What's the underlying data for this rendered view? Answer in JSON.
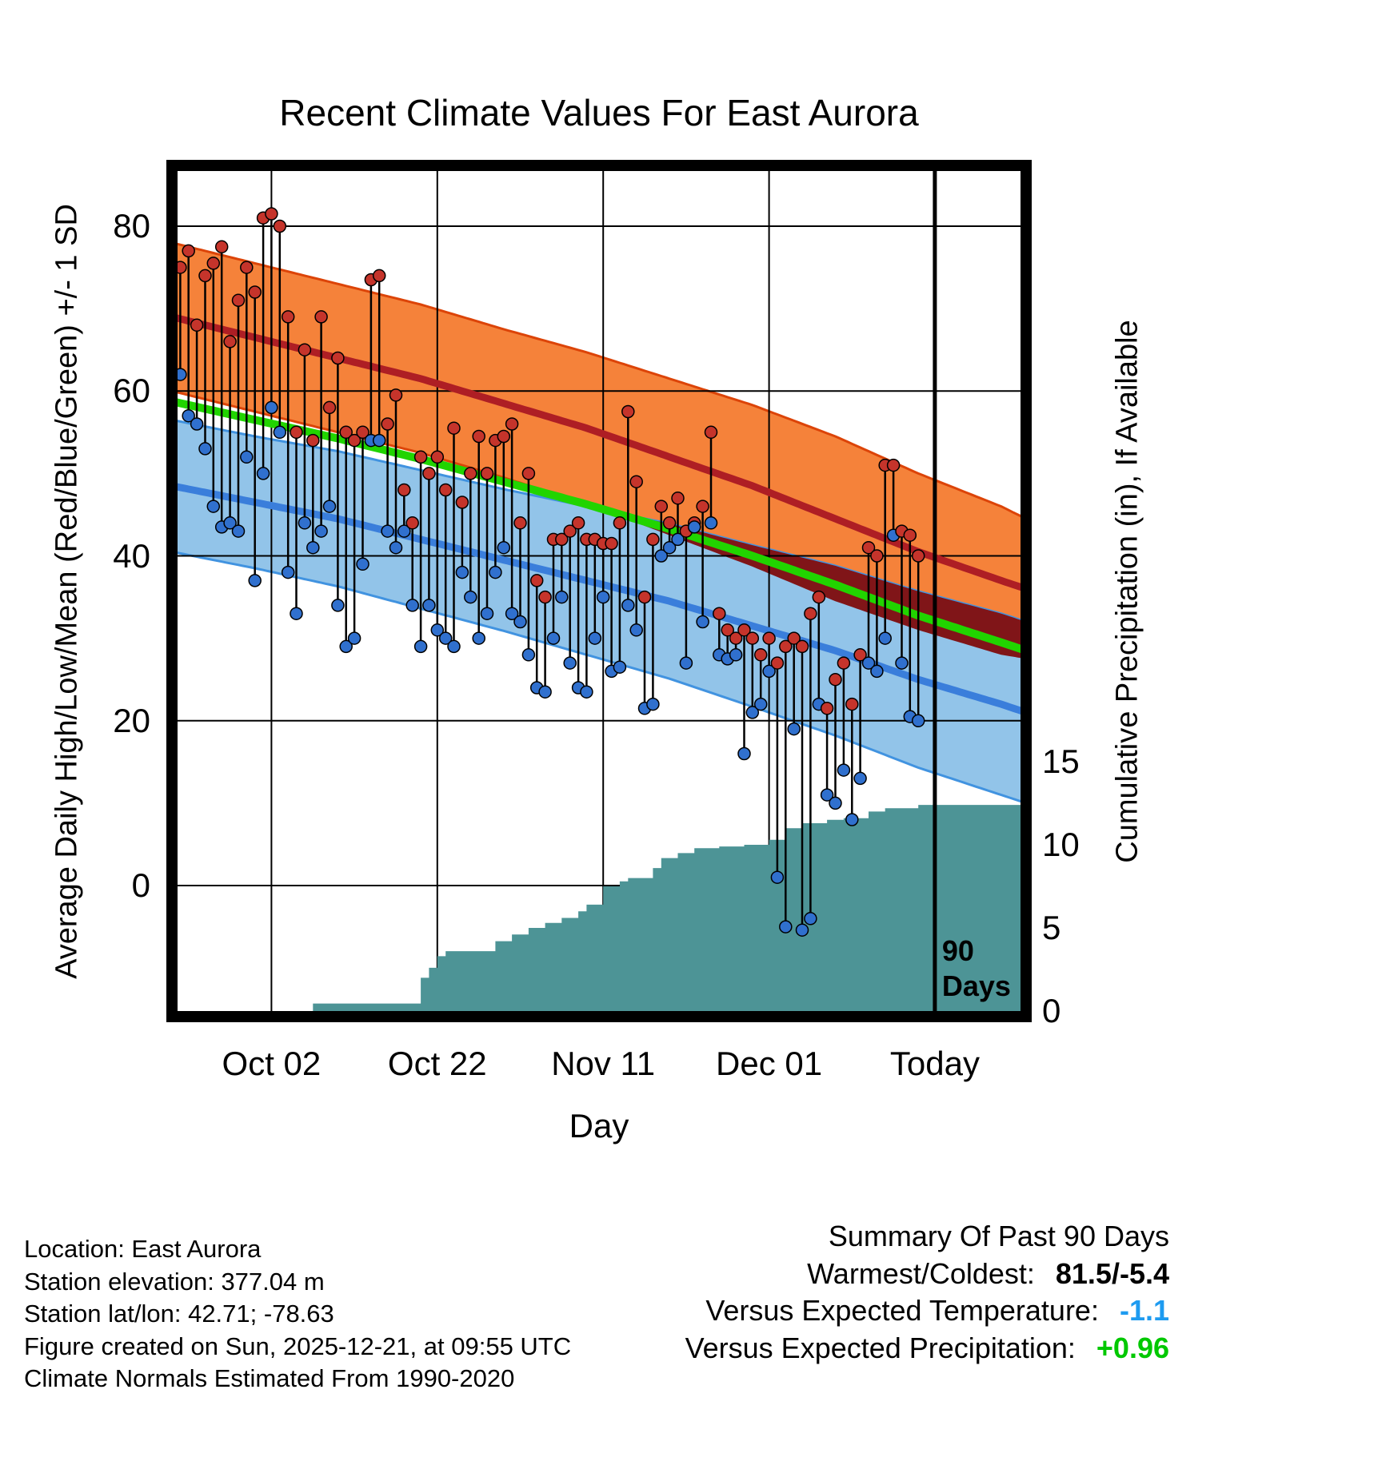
{
  "chart_data": {
    "type": "composite",
    "title": "Recent Climate Values For East Aurora",
    "xlabel": "Day",
    "ylabel_left": "Average Daily High/Low/Mean (Red/Blue/Green) +/- 1 SD",
    "ylabel_right": "Cumulative Precipitation (in), If Available",
    "x_axis_days": [
      0,
      103
    ],
    "temp_axis_range": [
      -15.9,
      87.4
    ],
    "precip_axis_range": [
      0,
      15.6
    ],
    "grid": true,
    "x_ticks": [
      {
        "day": 12,
        "label": "Oct 02"
      },
      {
        "day": 32,
        "label": "Oct 22"
      },
      {
        "day": 52,
        "label": "Nov 11"
      },
      {
        "day": 72,
        "label": "Dec 01"
      },
      {
        "day": 92,
        "label": "Today"
      }
    ],
    "y_ticks_left": [
      {
        "value": 80,
        "label": "80"
      },
      {
        "value": 60,
        "label": "60"
      },
      {
        "value": 40,
        "label": "40"
      },
      {
        "value": 20,
        "label": "20"
      },
      {
        "value": 0,
        "label": "0"
      }
    ],
    "y_ticks_right": [
      {
        "value": 15,
        "label": "15"
      },
      {
        "value": 10,
        "label": "10"
      },
      {
        "value": 5,
        "label": "5"
      },
      {
        "value": 0,
        "label": "0"
      }
    ],
    "today_day": 92,
    "today_label_lines": [
      "90",
      "Days"
    ],
    "normals": {
      "days": [
        0,
        10,
        20,
        30,
        40,
        50,
        60,
        70,
        80,
        90,
        100,
        103
      ],
      "high_mean": [
        69,
        66.5,
        64,
        61.5,
        58.5,
        55.5,
        52,
        48.5,
        44.5,
        40.5,
        37,
        36
      ],
      "high_sd": [
        9,
        9,
        9,
        9,
        9,
        9.2,
        9.5,
        9.8,
        10,
        9.5,
        9,
        8.5
      ],
      "low_mean": [
        48.5,
        46.5,
        44.5,
        42,
        39.5,
        37,
        34.5,
        31.5,
        28.5,
        25,
        22,
        21
      ],
      "low_sd": [
        8,
        8,
        8.2,
        8.4,
        8.6,
        9,
        9.4,
        9.8,
        10.3,
        10.7,
        11,
        11
      ]
    },
    "observations": [
      [
        1,
        75,
        62
      ],
      [
        2,
        77,
        57
      ],
      [
        3,
        68,
        56
      ],
      [
        4,
        74,
        53
      ],
      [
        5,
        75.5,
        46
      ],
      [
        6,
        77.5,
        43.5
      ],
      [
        7,
        66,
        44
      ],
      [
        8,
        71,
        43
      ],
      [
        9,
        75,
        52
      ],
      [
        10,
        72,
        37
      ],
      [
        11,
        81,
        50
      ],
      [
        12,
        81.5,
        58
      ],
      [
        13,
        80,
        55
      ],
      [
        14,
        69,
        38
      ],
      [
        15,
        55,
        33
      ],
      [
        16,
        65,
        44
      ],
      [
        17,
        54,
        41
      ],
      [
        18,
        69,
        43
      ],
      [
        19,
        58,
        46
      ],
      [
        20,
        64,
        34
      ],
      [
        21,
        55,
        29
      ],
      [
        22,
        54,
        30
      ],
      [
        23,
        55,
        39
      ],
      [
        24,
        73.5,
        54
      ],
      [
        25,
        74,
        54
      ],
      [
        26,
        56,
        43
      ],
      [
        27,
        59.5,
        41
      ],
      [
        28,
        48,
        43
      ],
      [
        29,
        44,
        34
      ],
      [
        30,
        52,
        29
      ],
      [
        31,
        50,
        34
      ],
      [
        32,
        52,
        31
      ],
      [
        33,
        48,
        30
      ],
      [
        34,
        55.5,
        29
      ],
      [
        35,
        46.5,
        38
      ],
      [
        36,
        50,
        35
      ],
      [
        37,
        54.5,
        30
      ],
      [
        38,
        50,
        33
      ],
      [
        39,
        54,
        38
      ],
      [
        40,
        54.5,
        41
      ],
      [
        41,
        56,
        33
      ],
      [
        42,
        44,
        32
      ],
      [
        43,
        50,
        28
      ],
      [
        44,
        37,
        24
      ],
      [
        45,
        35,
        23.5
      ],
      [
        46,
        42,
        30
      ],
      [
        47,
        42,
        35
      ],
      [
        48,
        43,
        27
      ],
      [
        49,
        44,
        24
      ],
      [
        50,
        42,
        23.5
      ],
      [
        51,
        42,
        30
      ],
      [
        52,
        41.5,
        35
      ],
      [
        53,
        41.5,
        26
      ],
      [
        54,
        44,
        26.5
      ],
      [
        55,
        57.5,
        34
      ],
      [
        56,
        49,
        31
      ],
      [
        57,
        35,
        21.5
      ],
      [
        58,
        42,
        22
      ],
      [
        59,
        46,
        40
      ],
      [
        60,
        44,
        41
      ],
      [
        61,
        47,
        42
      ],
      [
        62,
        43,
        27
      ],
      [
        63,
        44,
        43.5
      ],
      [
        64,
        46,
        32
      ],
      [
        65,
        55,
        44
      ],
      [
        66,
        33,
        28
      ],
      [
        67,
        31,
        27.5
      ],
      [
        68,
        30,
        28
      ],
      [
        69,
        31,
        16
      ],
      [
        70,
        30,
        21
      ],
      [
        71,
        28,
        22
      ],
      [
        72,
        30,
        26
      ],
      [
        73,
        27,
        1
      ],
      [
        74,
        29,
        -5
      ],
      [
        75,
        30,
        19
      ],
      [
        76,
        29,
        -5.4
      ],
      [
        77,
        33,
        -4
      ],
      [
        78,
        35,
        22
      ],
      [
        79,
        21.5,
        11
      ],
      [
        80,
        25,
        10
      ],
      [
        81,
        27,
        14
      ],
      [
        82,
        22,
        8
      ],
      [
        83,
        28,
        13
      ],
      [
        84,
        41,
        27
      ],
      [
        85,
        40,
        26
      ],
      [
        86,
        51,
        30
      ],
      [
        87,
        51,
        42.5
      ],
      [
        88,
        43,
        27
      ],
      [
        89,
        42.5,
        20.5
      ],
      [
        90,
        40,
        20
      ]
    ],
    "precip_cumulative": [
      [
        16,
        0
      ],
      [
        17,
        0.45
      ],
      [
        29,
        0.45
      ],
      [
        30,
        2.0
      ],
      [
        31,
        2.6
      ],
      [
        32,
        3.3
      ],
      [
        33,
        3.6
      ],
      [
        38,
        3.6
      ],
      [
        39,
        4.2
      ],
      [
        41,
        4.6
      ],
      [
        43,
        5.0
      ],
      [
        45,
        5.3
      ],
      [
        47,
        5.6
      ],
      [
        49,
        6.0
      ],
      [
        50,
        6.4
      ],
      [
        52,
        7.5
      ],
      [
        54,
        7.8
      ],
      [
        55,
        8.0
      ],
      [
        58,
        8.6
      ],
      [
        59,
        9.2
      ],
      [
        61,
        9.5
      ],
      [
        63,
        9.8
      ],
      [
        66,
        9.9
      ],
      [
        69,
        10.0
      ],
      [
        72,
        10.3
      ],
      [
        74,
        11.0
      ],
      [
        76,
        11.3
      ],
      [
        79,
        11.5
      ],
      [
        81,
        11.6
      ],
      [
        84,
        12.0
      ],
      [
        86,
        12.2
      ],
      [
        90,
        12.4
      ],
      [
        103,
        12.5
      ]
    ],
    "colors": {
      "band_orange": "#F5823A",
      "band_orange_edge": "#DC4408",
      "band_blue": "#92C4E9",
      "band_blue_edge": "#4193E0",
      "band_overlap_maroon": "#801518",
      "line_high_red": "#AE1E24",
      "line_low_blue": "#3A7EDB",
      "line_mean_green": "#21D400",
      "precip_teal": "#4D9496",
      "dot_high_red": "#C5342B",
      "dot_low_blue": "#3070CE",
      "stem_black": "#000000",
      "summary_temp_blue": "#1E9BF0",
      "summary_precip_green": "#00C800"
    }
  },
  "footer": {
    "location": "Location: East Aurora",
    "elevation": "Station elevation: 377.04 m",
    "latlon": "Station lat/lon: 42.71; -78.63",
    "created": "Figure created on Sun, 2025-12-21, at 09:55 UTC",
    "normals_note": "Climate Normals Estimated From 1990-2020"
  },
  "summary": {
    "heading": "Summary Of Past 90 Days",
    "warmest_coldest_label": "Warmest/Coldest:",
    "warmest_coldest_value": "81.5/-5.4",
    "vs_temp_label": "Versus Expected Temperature:",
    "vs_temp_value": "-1.1",
    "vs_precip_label": "Versus Expected Precipitation:",
    "vs_precip_value": "+0.96"
  }
}
